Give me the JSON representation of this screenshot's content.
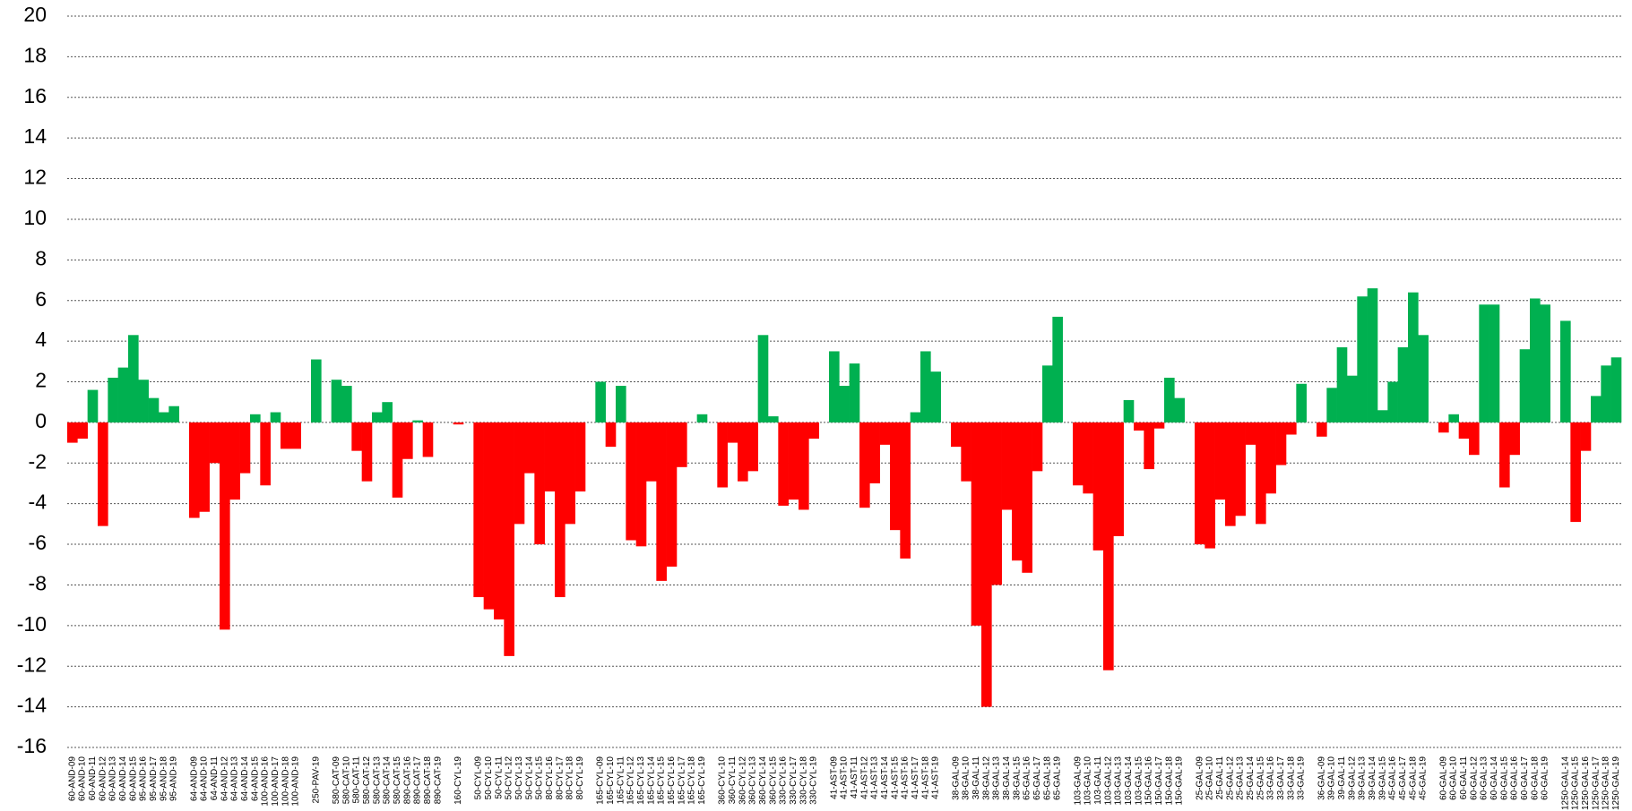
{
  "chart_data": {
    "type": "bar",
    "categories": [
      "60-AND-09",
      "60-AND-10",
      "60-AND-11",
      "60-AND-12",
      "60-AND-13",
      "60-AND-14",
      "60-AND-15",
      "95-AND-16",
      "95-AND-17",
      "95-AND-18",
      "95-AND-19",
      null,
      "64-AND-09",
      "64-AND-10",
      "64-AND-11",
      "64-AND-12",
      "64-AND-13",
      "64-AND-14",
      "64-AND-15",
      "100-AND-16",
      "100-AND-17",
      "100-AND-18",
      "100-AND-19",
      null,
      "250-PAV-19",
      null,
      "580-CAT-09",
      "580-CAT-10",
      "580-CAT-11",
      "580-CAT-12",
      "580-CAT-13",
      "580-CAT-14",
      "580-CAT-15",
      "890-CAT-16",
      "890-CAT-17",
      "890-CAT-18",
      "890-CAT-19",
      null,
      "160-CYL-19",
      null,
      "50-CYL-09",
      "50-CYL-10",
      "50-CYL-11",
      "50-CYL-12",
      "50-CYL-13",
      "50-CYL-14",
      "50-CYL-15",
      "80-CYL-16",
      "80-CYL-17",
      "80-CYL-18",
      "80-CYL-19",
      null,
      "165-CYL-09",
      "165-CYL-10",
      "165-CYL-11",
      "165-CYL-12",
      "165-CYL-13",
      "165-CYL-14",
      "165-CYL-15",
      "165-CYL-16",
      "165-CYL-17",
      "165-CYL-18",
      "165-CYL-19",
      null,
      "360-CYL-10",
      "360-CYL-11",
      "360-CYL-12",
      "360-CYL-13",
      "360-CYL-14",
      "360-CYL-15",
      "330-CYL-16",
      "330-CYL-17",
      "330-CYL-18",
      "330-CYL-19",
      null,
      "41-AST-09",
      "41-AST-10",
      "41-AST-11",
      "41-AST-12",
      "41-AST-13",
      "41-AST-14",
      "41-AST-15",
      "41-AST-16",
      "41-AST-17",
      "41-AST-18",
      "41-AST-19",
      null,
      "38-GAL-09",
      "38-GAL-10",
      "38-GAL-11",
      "38-GAL-12",
      "38-GAL-13",
      "38-GAL-14",
      "38-GAL-15",
      "65-GAL-16",
      "65-GAL-17",
      "65-GAL-18",
      "65-GAL-19",
      null,
      "103-GAL-09",
      "103-GAL-10",
      "103-GAL-11",
      "103-GAL-12",
      "103-GAL-13",
      "103-GAL-14",
      "103-GAL-15",
      "150-GAL-16",
      "150-GAL-17",
      "150-GAL-18",
      "150-GAL-19",
      null,
      "25-GAL-09",
      "25-GAL-10",
      "25-GAL-11",
      "25-GAL-12",
      "25-GAL-13",
      "25-GAL-14",
      "25-GAL-15",
      "33-GAL-16",
      "33-GAL-17",
      "33-GAL-18",
      "33-GAL-19",
      null,
      "36-GAL-09",
      "39-GAL-10",
      "39-GAL-11",
      "39-GAL-12",
      "39-GAL-13",
      "39-GAL-14",
      "39-GAL-15",
      "45-GAL-16",
      "45-GAL-17",
      "45-GAL-18",
      "45-GAL-19",
      null,
      "60-GAL-09",
      "60-GAL-10",
      "60-GAL-11",
      "60-GAL-12",
      "60-GAL-13",
      "60-GAL-14",
      "60-GAL-15",
      "60-GAL-16",
      "60-GAL-17",
      "60-GAL-18",
      "60-GAL-19",
      null,
      "1250-GAL-14",
      "1250-GAL-15",
      "1250-GAL-16",
      "1250-GAL-17",
      "1250-GAL-18",
      "1250-GAL-19"
    ],
    "values": [
      -1.0,
      -0.8,
      1.6,
      -5.1,
      2.2,
      2.7,
      4.3,
      2.1,
      1.2,
      0.5,
      0.8,
      null,
      -4.7,
      -4.4,
      -2.0,
      -10.2,
      -3.8,
      -2.5,
      0.4,
      -3.1,
      0.5,
      -1.3,
      -1.3,
      null,
      3.1,
      null,
      2.1,
      1.8,
      -1.4,
      -2.9,
      0.5,
      1.0,
      -3.7,
      -1.8,
      0.1,
      -1.7,
      0,
      null,
      -0.1,
      null,
      -8.6,
      -9.2,
      -9.7,
      -11.5,
      -5.0,
      -2.5,
      -6.0,
      -3.4,
      -8.6,
      -5.0,
      -3.4,
      null,
      2.0,
      -1.2,
      1.8,
      -5.8,
      -6.1,
      -2.9,
      -7.8,
      -7.1,
      -2.2,
      0,
      0.4,
      null,
      -3.2,
      -1.0,
      -2.9,
      -2.4,
      4.3,
      0.3,
      -4.1,
      -3.8,
      -4.3,
      -0.8,
      null,
      3.5,
      1.8,
      2.9,
      -4.2,
      -3.0,
      -1.1,
      -5.3,
      -6.7,
      0.5,
      3.5,
      2.5,
      null,
      -1.2,
      -2.9,
      -10.0,
      -14.0,
      -8.0,
      -4.3,
      -6.8,
      -7.4,
      -2.4,
      2.8,
      5.2,
      null,
      -3.1,
      -3.5,
      -6.3,
      -12.2,
      -5.6,
      1.1,
      -0.4,
      -2.3,
      -0.3,
      2.2,
      1.2,
      null,
      -6.0,
      -6.2,
      -3.8,
      -5.1,
      -4.6,
      -1.1,
      -5.0,
      -3.5,
      -2.1,
      -0.6,
      1.9,
      null,
      -0.7,
      1.7,
      3.7,
      2.3,
      6.2,
      6.6,
      0.6,
      2.0,
      3.7,
      6.4,
      4.3,
      null,
      -0.5,
      0.4,
      -0.8,
      -1.6,
      5.8,
      5.8,
      -3.2,
      -1.6,
      3.6,
      6.1,
      5.8,
      null,
      5.0,
      -4.9,
      -1.4,
      1.3,
      2.8,
      3.2
    ],
    "color_positive": "#00b050",
    "color_negative": "#ff0000",
    "ylim": [
      -16,
      20
    ],
    "yticks": [
      -16,
      -14,
      -12,
      -10,
      -8,
      -6,
      -4,
      -2,
      0,
      2,
      4,
      6,
      8,
      10,
      12,
      14,
      16,
      18,
      20
    ],
    "grid": true
  }
}
